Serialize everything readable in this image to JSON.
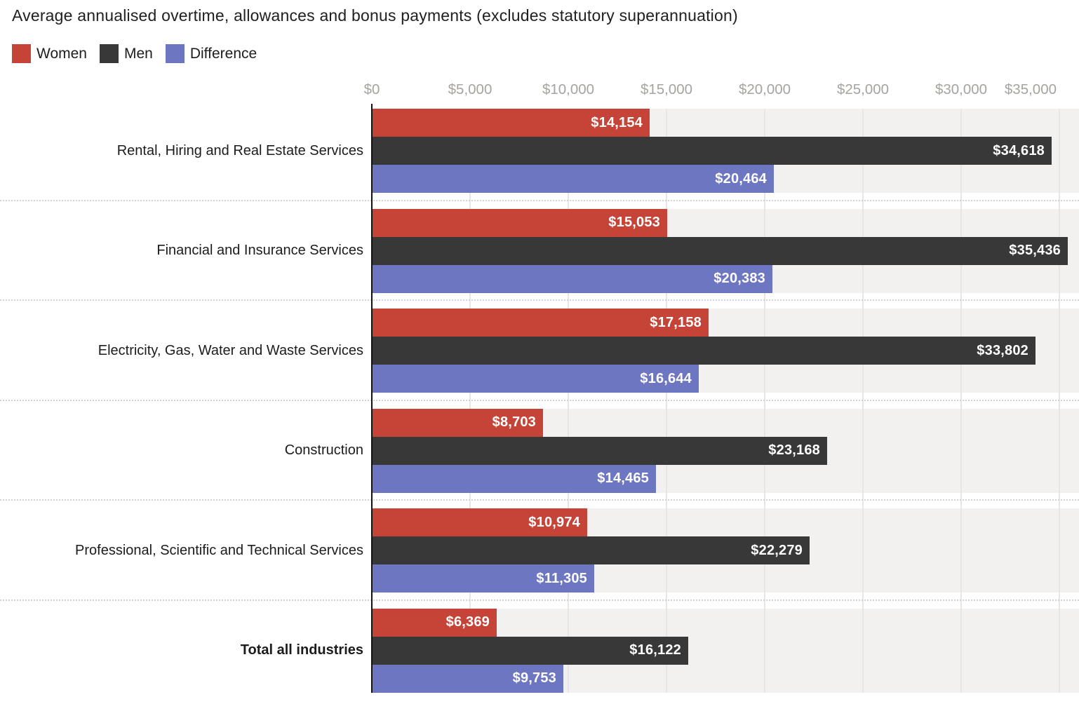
{
  "title": "Average annualised overtime, allowances and bonus payments (excludes statutory superannuation)",
  "chart_data": {
    "type": "bar",
    "orientation": "horizontal",
    "title": "Average annualised overtime, allowances and bonus payments (excludes statutory superannuation)",
    "legend_position": "top-left",
    "grid": true,
    "series": [
      {
        "key": "women",
        "name": "Women",
        "color": "#c54437"
      },
      {
        "key": "men",
        "name": "Men",
        "color": "#383838"
      },
      {
        "key": "difference",
        "name": "Difference",
        "color": "#6d76c0"
      }
    ],
    "categories": [
      "Rental, Hiring and Real Estate Services",
      "Financial and Insurance Services",
      "Electricity, Gas, Water and Waste Services",
      "Construction",
      "Professional, Scientific and Technical Services",
      "Total all industries"
    ],
    "rows": [
      {
        "category": "Rental, Hiring and Real Estate Services",
        "bold": false,
        "values": {
          "women": 14154,
          "men": 34618,
          "difference": 20464
        },
        "labels": {
          "women": "$14,154",
          "men": "$34,618",
          "difference": "$20,464"
        }
      },
      {
        "category": "Financial and Insurance Services",
        "bold": false,
        "values": {
          "women": 15053,
          "men": 35436,
          "difference": 20383
        },
        "labels": {
          "women": "$15,053",
          "men": "$35,436",
          "difference": "$20,383"
        }
      },
      {
        "category": "Electricity, Gas, Water and Waste Services",
        "bold": false,
        "values": {
          "women": 17158,
          "men": 33802,
          "difference": 16644
        },
        "labels": {
          "women": "$17,158",
          "men": "$33,802",
          "difference": "$16,644"
        }
      },
      {
        "category": "Construction",
        "bold": false,
        "values": {
          "women": 8703,
          "men": 23168,
          "difference": 14465
        },
        "labels": {
          "women": "$8,703",
          "men": "$23,168",
          "difference": "$14,465"
        }
      },
      {
        "category": "Professional, Scientific and Technical Services",
        "bold": false,
        "values": {
          "women": 10974,
          "men": 22279,
          "difference": 11305
        },
        "labels": {
          "women": "$10,974",
          "men": "$22,279",
          "difference": "$11,305"
        }
      },
      {
        "category": "Total all industries",
        "bold": true,
        "values": {
          "women": 6369,
          "men": 16122,
          "difference": 9753
        },
        "labels": {
          "women": "$6,369",
          "men": "$16,122",
          "difference": "$9,753"
        }
      }
    ],
    "x_axis": {
      "min": 0,
      "max": 35000,
      "ticks": [
        {
          "label": "$0",
          "value": 0
        },
        {
          "label": "$5,000",
          "value": 5000
        },
        {
          "label": "$10,000",
          "value": 10000
        },
        {
          "label": "$15,000",
          "value": 15000
        },
        {
          "label": "$20,000",
          "value": 20000
        },
        {
          "label": "$25,000",
          "value": 25000
        },
        {
          "label": "$30,000",
          "value": 30000
        },
        {
          "label": "$35,000",
          "value": 35000
        }
      ]
    },
    "colors": {
      "women": "#c54437",
      "men": "#383838",
      "difference": "#6d76c0",
      "track_background": "#f2f1f0",
      "gridline": "#e7e6e4",
      "axis_line": "#121212",
      "tick_label": "#a6a3a0",
      "separator": "#d2d2d2",
      "value_label": "#ffffff"
    }
  }
}
